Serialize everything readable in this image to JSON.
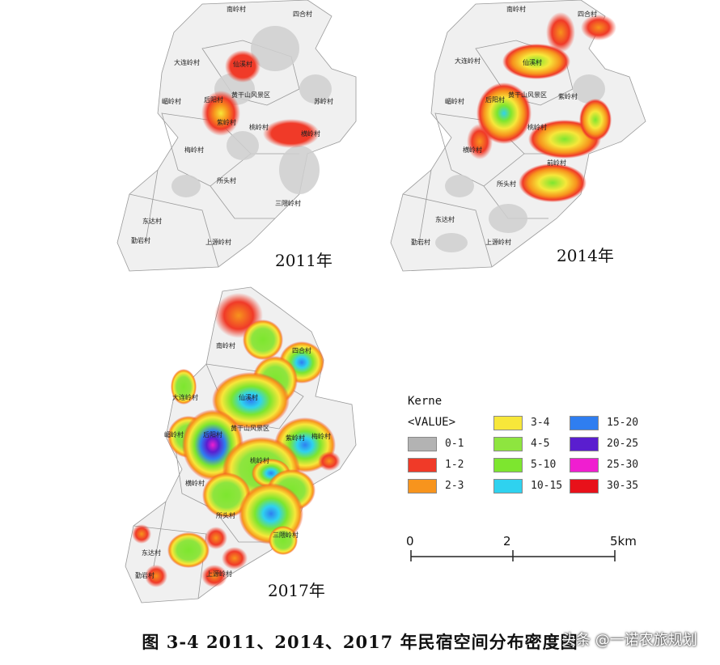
{
  "maps": [
    {
      "year_label": "2011年",
      "villages": [
        "南岭村",
        "四合村",
        "大连岭村",
        "仙溪村",
        "嵋岭村",
        "后阳村",
        "黄干山风景区",
        "苏岭村",
        "紫岭村",
        "桃岭村",
        "横岭村",
        "梅岭村",
        "所头村",
        "三隈岭村",
        "东达村",
        "上源岭村",
        "勤岩村"
      ]
    },
    {
      "year_label": "2014年",
      "villages": [
        "南岭村",
        "四合村",
        "大连岭村",
        "仙溪村",
        "嵋岭村",
        "后阳村",
        "黄干山风景区",
        "紫岭村",
        "桃岭村",
        "横岭村",
        "所头村",
        "前岭村",
        "东达村",
        "上源岭村",
        "勤岩村"
      ]
    },
    {
      "year_label": "2017年",
      "villages": [
        "南岭村",
        "四合村",
        "大连岭村",
        "仙溪村",
        "嵋岭村",
        "后阳村",
        "黄干山风景区",
        "紫岭村",
        "桃岭村",
        "横岭村",
        "所头村",
        "梅岭村",
        "三隈岭村",
        "东达村",
        "上源岭村",
        "勤岩村"
      ]
    }
  ],
  "legend": {
    "title_line1": "Kerne",
    "title_line2": "<VALUE>",
    "items": [
      {
        "label": "0-1",
        "color": "#b3b3b3"
      },
      {
        "label": "1-2",
        "color": "#f03a28"
      },
      {
        "label": "2-3",
        "color": "#f7941d"
      },
      {
        "label": "3-4",
        "color": "#f7e73a"
      },
      {
        "label": "4-5",
        "color": "#8ee53f"
      },
      {
        "label": "5-10",
        "color": "#7de62f"
      },
      {
        "label": "10-15",
        "color": "#2fd2ef"
      },
      {
        "label": "15-20",
        "color": "#2f7ef0"
      },
      {
        "label": "20-25",
        "color": "#5a1ecf"
      },
      {
        "label": "25-30",
        "color": "#f01ed0"
      },
      {
        "label": "30-35",
        "color": "#e8111a"
      }
    ]
  },
  "scale_bar": {
    "labels": [
      "0",
      "2",
      "5km"
    ]
  },
  "caption": "图 3-4 2011、2014、2017 年民宿空间分布密度图",
  "watermark": "头条 @一诺农旅规划"
}
